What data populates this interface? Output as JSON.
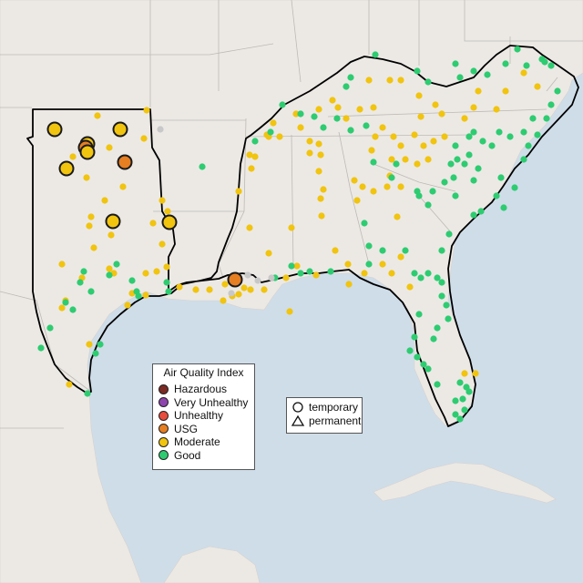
{
  "aqi_legend": {
    "title": "Air Quality Index",
    "categories": [
      {
        "label": "Hazardous",
        "color": "#7b2a24"
      },
      {
        "label": "Very Unhealthy",
        "color": "#8e44ad"
      },
      {
        "label": "Unhealthy",
        "color": "#e74c3c"
      },
      {
        "label": "USG",
        "color": "#e67e22"
      },
      {
        "label": "Moderate",
        "color": "#f1c40f"
      },
      {
        "label": "Good",
        "color": "#2ecc71"
      }
    ]
  },
  "shape_legend": {
    "items": [
      {
        "label": "temporary",
        "icon": "circle-icon"
      },
      {
        "label": "permanent",
        "icon": "triangle-icon"
      }
    ]
  },
  "colors": {
    "land": "#ece9e5",
    "water": "#cfdde9",
    "region_border": "#000000",
    "state_border": "#bdbab6",
    "no_data": "#c8c8c8"
  }
}
